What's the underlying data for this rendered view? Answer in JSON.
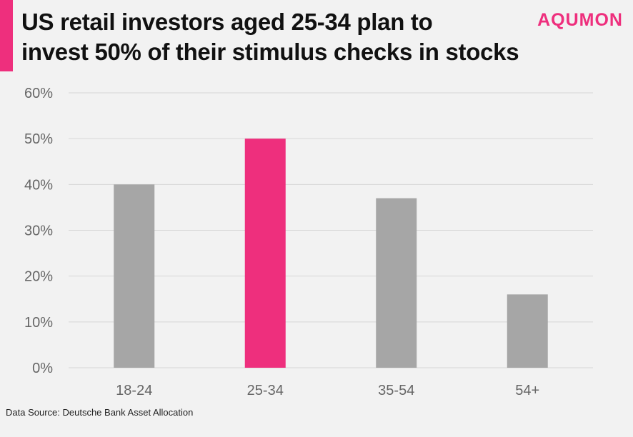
{
  "header": {
    "title_line1": "US retail investors aged 25-34 plan to",
    "title_line2": "invest 50% of their stimulus checks in stocks",
    "brand": "AQUMON"
  },
  "colors": {
    "accent": "#ee2f7d",
    "bar_default": "#a6a6a6",
    "gridline": "#d7d7d7",
    "axis_text": "#666666",
    "background": "#f2f2f2"
  },
  "chart_data": {
    "type": "bar",
    "categories": [
      "18-24",
      "25-34",
      "35-54",
      "54+"
    ],
    "values": [
      40,
      50,
      37,
      16
    ],
    "highlight": "25-34",
    "ylim": [
      0,
      60
    ],
    "yticks": [
      0,
      10,
      20,
      30,
      40,
      50,
      60
    ],
    "ytick_labels": [
      "0%",
      "10%",
      "20%",
      "30%",
      "40%",
      "50%",
      "60%"
    ],
    "grid": true,
    "title": "",
    "xlabel": "",
    "ylabel": ""
  },
  "footer": {
    "source": "Data Source: Deutsche Bank Asset Allocation"
  }
}
